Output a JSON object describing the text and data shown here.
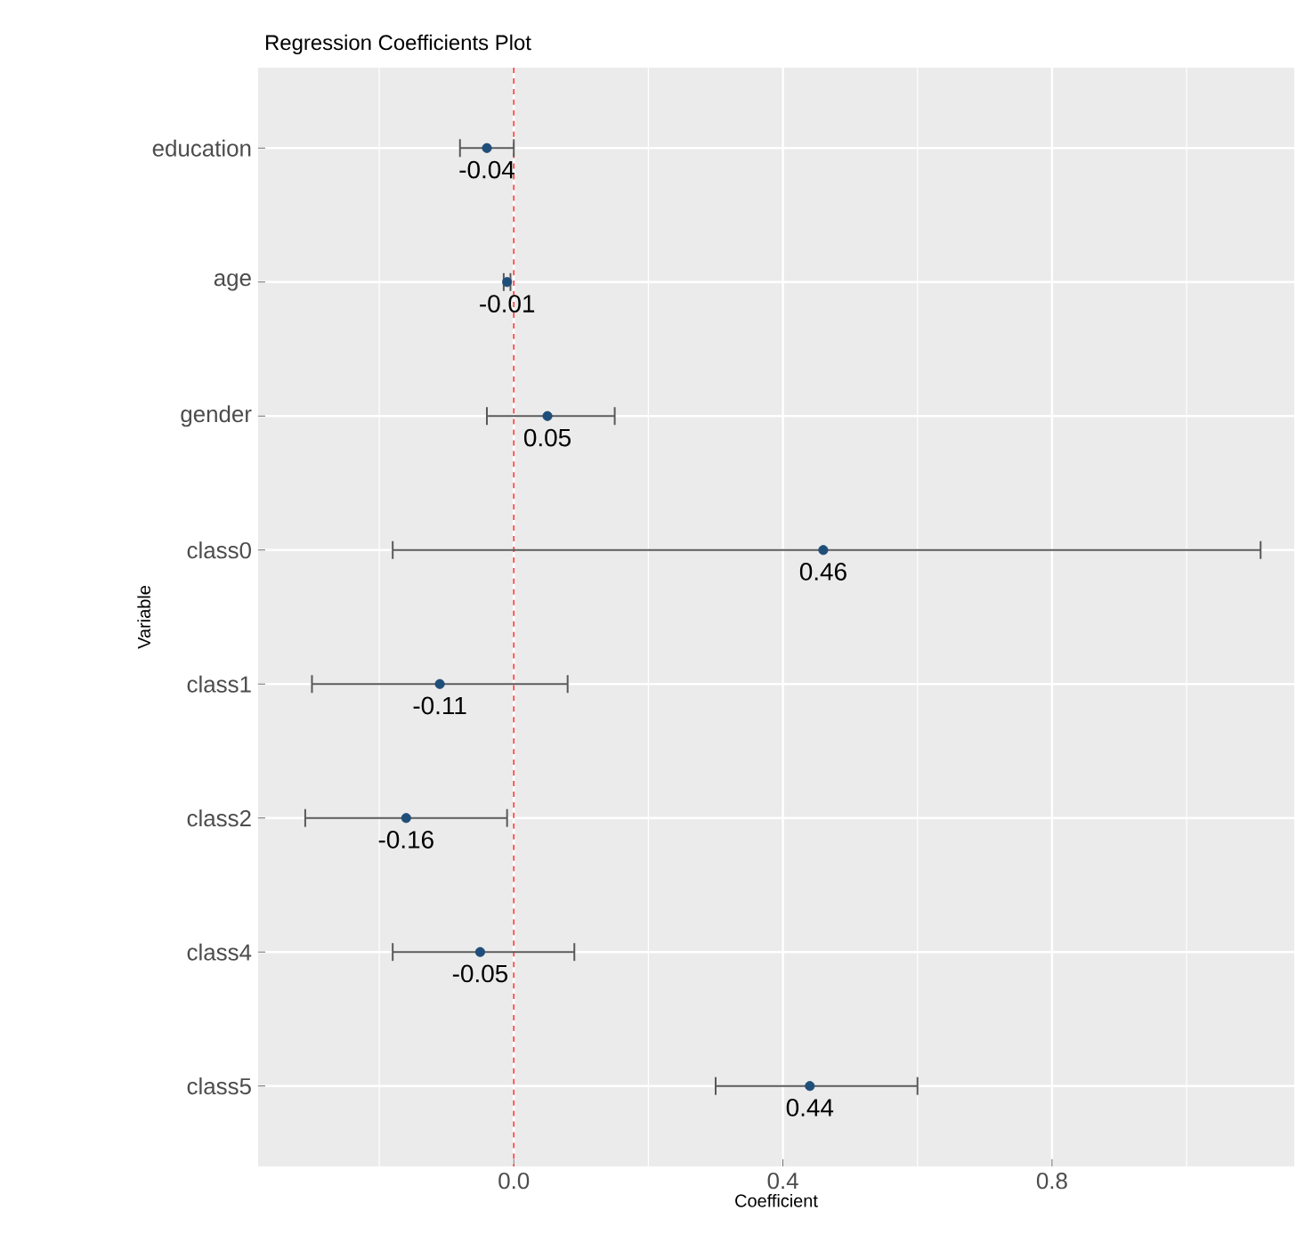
{
  "chart_data": {
    "type": "scatter",
    "orientation": "horizontal",
    "title": "Regression Coefficients Plot",
    "xlabel": "Coefficient",
    "ylabel": "Variable",
    "categories": [
      "education",
      "age",
      "gender",
      "class0",
      "class1",
      "class2",
      "class4",
      "class5"
    ],
    "values": [
      -0.04,
      -0.01,
      0.05,
      0.46,
      -0.11,
      -0.16,
      -0.05,
      0.44
    ],
    "errors": [
      [
        -0.08,
        0.0
      ],
      [
        -0.015,
        -0.005
      ],
      [
        -0.04,
        0.15
      ],
      [
        -0.18,
        1.11
      ],
      [
        -0.3,
        0.08
      ],
      [
        -0.31,
        -0.01
      ],
      [
        -0.18,
        0.09
      ],
      [
        0.3,
        0.6
      ]
    ],
    "color": "#1f4e79",
    "marker": "circle",
    "data_labels": true,
    "xlim": [
      -0.38,
      1.16
    ],
    "xticks": [
      {
        "value": 0,
        "label": "0.0"
      },
      0.4,
      0.8
    ],
    "ref_lines": [
      {
        "axis": "x",
        "value": 0,
        "color": "#ff3333",
        "line_style": "dashed"
      }
    ],
    "grid": true
  }
}
